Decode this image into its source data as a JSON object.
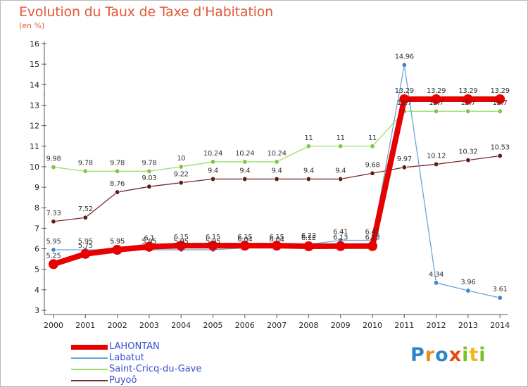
{
  "header": {
    "title": "Evolution du Taux de Taxe d'Habitation",
    "subtitle": "(en %)"
  },
  "brand": {
    "letters": [
      {
        "ch": "P",
        "color": "#2e86c9"
      },
      {
        "ch": "r",
        "color": "#f08a1c"
      },
      {
        "ch": "o",
        "color": "#2e86c9"
      },
      {
        "ch": "x",
        "color": "#e94a1a"
      },
      {
        "ch": "i",
        "color": "#7cbf2a"
      },
      {
        "ch": "t",
        "color": "#f0b81c"
      },
      {
        "ch": "i",
        "color": "#7cbf2a"
      }
    ]
  },
  "chart_data": {
    "type": "line",
    "title": "Evolution du Taux de Taxe d'Habitation",
    "ylabel": "(en %)",
    "xlabel": "",
    "ylim": [
      3,
      16
    ],
    "yticks": [
      3,
      4,
      5,
      6,
      7,
      8,
      9,
      10,
      11,
      12,
      13,
      14,
      15,
      16
    ],
    "grid": false,
    "legend_placement": "bottom-left",
    "x": [
      2000,
      2001,
      2002,
      2003,
      2004,
      2005,
      2006,
      2007,
      2008,
      2009,
      2010,
      2011,
      2012,
      2013,
      2014
    ],
    "series": [
      {
        "name": "LAHONTAN",
        "color": "#e80000",
        "marker": "#e80000",
        "width": 8,
        "r": 7,
        "values": [
          5.25,
          5.75,
          5.95,
          6.1,
          6.15,
          6.15,
          6.15,
          6.15,
          6.12,
          6.13,
          6.13,
          13.29,
          13.29,
          13.29,
          13.29
        ],
        "labels": [
          "5.25",
          "5.75",
          "5.95",
          "6.1",
          "6.15",
          "6.15",
          "6.15",
          "6.15",
          "6.12",
          "6.13",
          "6.13",
          "13.29",
          "13.29",
          "13.29",
          "13.29"
        ]
      },
      {
        "name": "Labatut",
        "color": "#6aa5d8",
        "marker": "#3c86cf",
        "width": 1.3,
        "r": 3.2,
        "values": [
          5.95,
          5.95,
          5.95,
          5.95,
          5.95,
          5.95,
          6.04,
          6.04,
          6.22,
          6.41,
          6.41,
          14.96,
          4.34,
          3.96,
          3.61
        ],
        "labels": [
          "5.95",
          "5.95",
          "5.95",
          "5.95",
          "5.95",
          "5.95",
          "6.04",
          "6.04",
          "6.22",
          "6.41",
          "6.41",
          "14.96",
          "4.34",
          "3.96",
          "3.61"
        ]
      },
      {
        "name": "Saint-Cricq-du-Gave",
        "color": "#9fdc6a",
        "marker": "#7bc843",
        "width": 1.3,
        "r": 3.2,
        "values": [
          9.98,
          9.78,
          9.78,
          9.78,
          10,
          10.24,
          10.24,
          10.24,
          11,
          11,
          11,
          12.7,
          12.7,
          12.7,
          12.7
        ],
        "labels": [
          "9.98",
          "9.78",
          "9.78",
          "9.78",
          "10",
          "10.24",
          "10.24",
          "10.24",
          "11",
          "11",
          "11",
          "12.7",
          "12.7",
          "12.7",
          "12.7"
        ]
      },
      {
        "name": "Puyoô",
        "color": "#7a2a2a",
        "marker": "#5c1c1c",
        "width": 1.3,
        "r": 3.2,
        "values": [
          7.33,
          7.52,
          8.76,
          9.03,
          9.22,
          9.4,
          9.4,
          9.4,
          9.4,
          9.4,
          9.68,
          9.97,
          10.12,
          10.32,
          10.53
        ],
        "labels": [
          "7.33",
          "7.52",
          "8.76",
          "9.03",
          "9.22",
          "9.4",
          "9.4",
          "9.4",
          "9.4",
          "9.4",
          "9.68",
          "9.97",
          "10.12",
          "10.32",
          "10.53"
        ]
      }
    ]
  }
}
